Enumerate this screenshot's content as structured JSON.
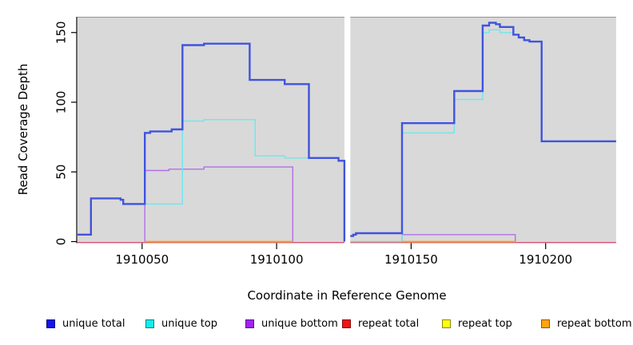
{
  "figure": {
    "background": "#ffffff",
    "panel_background": "#d9d9d9",
    "panel_top_border": "#949494"
  },
  "chart_data": {
    "type": "step-line",
    "title": "",
    "xlabel": "Coordinate in Reference Genome",
    "ylabel": "Read Coverage Depth",
    "xticks": [
      1910050,
      1910100,
      1910150,
      1910200
    ],
    "yticks": [
      0,
      50,
      100,
      150
    ],
    "xlim": [
      1910026,
      1910226.2
    ],
    "ylim": [
      0,
      161
    ],
    "grid": false,
    "legend_position": "bottom",
    "gap_region": [
      1910125.2,
      1910127.4
    ],
    "panels": [
      [
        1910026,
        1910125.2
      ],
      [
        1910127.4,
        1910226.2
      ]
    ],
    "series": [
      {
        "name": "repeat total (left panel)",
        "color": "#d94f75",
        "width": 1.4,
        "dy": 1.2,
        "points": [
          [
            1910026,
            0
          ],
          [
            1910125.2,
            0
          ]
        ]
      },
      {
        "name": "repeat total (right panel)",
        "color": "#d94f75",
        "width": 1.4,
        "dy": 1.2,
        "points": [
          [
            1910127.4,
            0
          ],
          [
            1910226.2,
            0
          ]
        ]
      },
      {
        "name": "repeat/unique top zero overlap (right panel)",
        "color": "#8bd9a6",
        "width": 1.4,
        "dy": 0,
        "points": [
          [
            1910127.4,
            0
          ],
          [
            1910146.6,
            0
          ]
        ]
      },
      {
        "name": "repeat bottom (left panel)",
        "color": "#ffa500",
        "width": 1.7,
        "dy": 0,
        "points": [
          [
            1910051,
            0
          ],
          [
            1910106,
            0
          ]
        ]
      },
      {
        "name": "repeat bottom (right panel)",
        "color": "#ffa500",
        "width": 1.7,
        "dy": 0,
        "points": [
          [
            1910146.6,
            0
          ],
          [
            1910188.7,
            0
          ]
        ]
      },
      {
        "name": "unique bottom (left panel)",
        "color": "#b46fe6",
        "width": 1.4,
        "dy": 0,
        "points": [
          [
            1910051,
            0
          ],
          [
            1910051,
            51
          ],
          [
            1910060,
            52
          ],
          [
            1910073,
            53.5
          ],
          [
            1910106,
            53.5
          ],
          [
            1910106,
            0
          ]
        ]
      },
      {
        "name": "unique bottom (right panel)",
        "color": "#b46fe6",
        "width": 1.4,
        "dy": 0,
        "points": [
          [
            1910146.6,
            0
          ],
          [
            1910146.6,
            5
          ],
          [
            1910188.7,
            5
          ],
          [
            1910188.7,
            0
          ]
        ]
      },
      {
        "name": "unique top (left panel)",
        "color": "#6fe6ec",
        "width": 1.4,
        "dy": 0,
        "points": [
          [
            1910026,
            5
          ],
          [
            1910031,
            31
          ],
          [
            1910042,
            30
          ],
          [
            1910043,
            27
          ],
          [
            1910065,
            27
          ],
          [
            1910065,
            86.5
          ],
          [
            1910073,
            87.5
          ],
          [
            1910092,
            61.5
          ],
          [
            1910103,
            60
          ],
          [
            1910123,
            58
          ],
          [
            1910125.2,
            58
          ],
          [
            1910125.2,
            0
          ]
        ]
      },
      {
        "name": "unique top (right panel)",
        "color": "#6fe6ec",
        "width": 1.4,
        "dy": 0,
        "points": [
          [
            1910146.6,
            0
          ],
          [
            1910146.6,
            78
          ],
          [
            1910166,
            102
          ],
          [
            1910176.6,
            150
          ],
          [
            1910179,
            152
          ],
          [
            1910183,
            152
          ],
          [
            1910183,
            150
          ],
          [
            1910188,
            148.5
          ],
          [
            1910190,
            146.5
          ],
          [
            1910192,
            144.5
          ],
          [
            1910194,
            143.5
          ],
          [
            1910198.5,
            143.5
          ],
          [
            1910198.5,
            72
          ],
          [
            1910226.2,
            72
          ]
        ]
      },
      {
        "name": "unique total (left panel)",
        "color": "#4053de",
        "width": 2.4,
        "dy": 0,
        "points": [
          [
            1910026,
            5
          ],
          [
            1910031,
            31
          ],
          [
            1910042,
            30
          ],
          [
            1910043,
            27
          ],
          [
            1910051,
            78
          ],
          [
            1910053,
            79
          ],
          [
            1910061,
            80.5
          ],
          [
            1910065,
            141
          ],
          [
            1910073,
            142
          ],
          [
            1910090,
            116
          ],
          [
            1910103,
            113
          ],
          [
            1910112,
            60
          ],
          [
            1910123,
            58
          ],
          [
            1910125.2,
            58
          ],
          [
            1910125.2,
            0
          ]
        ]
      },
      {
        "name": "unique total (right panel)",
        "color": "#4053de",
        "width": 2.4,
        "dy": 0,
        "points": [
          [
            1910127.4,
            4
          ],
          [
            1910128.5,
            5
          ],
          [
            1910129.5,
            6
          ],
          [
            1910146.6,
            85
          ],
          [
            1910166,
            108
          ],
          [
            1910176.6,
            155
          ],
          [
            1910179,
            157
          ],
          [
            1910181.5,
            156
          ],
          [
            1910183,
            154
          ],
          [
            1910188,
            148.5
          ],
          [
            1910190,
            146.5
          ],
          [
            1910192,
            144.5
          ],
          [
            1910194,
            143.5
          ],
          [
            1910198.5,
            143.5
          ],
          [
            1910198.5,
            72
          ],
          [
            1910226.2,
            72
          ]
        ]
      }
    ]
  },
  "legend": {
    "items": [
      {
        "label": "unique total",
        "color": "#1414ee"
      },
      {
        "label": "unique top",
        "color": "#12ecec"
      },
      {
        "label": "unique bottom",
        "color": "#a023ef"
      },
      {
        "label": "repeat total",
        "color": "#ee1414"
      },
      {
        "label": "repeat top",
        "color": "#fdfd12"
      },
      {
        "label": "repeat bottom",
        "color": "#ffa510"
      }
    ]
  }
}
